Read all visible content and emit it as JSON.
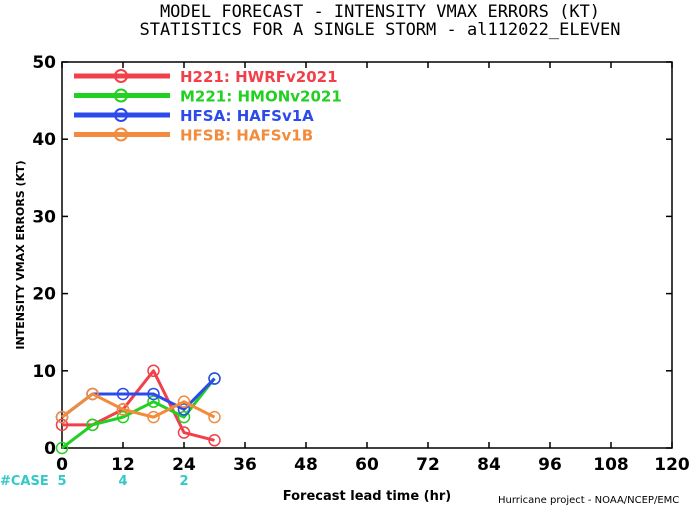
{
  "chart_data": {
    "type": "line",
    "title": "MODEL FORECAST - INTENSITY VMAX ERRORS (KT)",
    "subtitle": "STATISTICS FOR A SINGLE STORM - al112022_ELEVEN",
    "ylabel": "INTENSITY VMAX ERRORS (KT)",
    "xlabel": "Forecast lead time (hr)",
    "credit": "Hurricane project - NOAA/NCEP/EMC",
    "xlim": [
      0,
      120
    ],
    "ylim": [
      0,
      50
    ],
    "xticks": [
      0,
      12,
      24,
      36,
      48,
      60,
      72,
      84,
      96,
      108,
      120
    ],
    "yticks": [
      0,
      10,
      20,
      30,
      40,
      50
    ],
    "grid": false,
    "legend_position": "top-left",
    "series": [
      {
        "name": "H221",
        "label": "HWRFv2021",
        "color": "#f2404a",
        "x": [
          0,
          6,
          12,
          18,
          24,
          30
        ],
        "y": [
          3,
          3,
          5,
          10,
          2,
          1
        ]
      },
      {
        "name": "M221",
        "label": "HMONv2021",
        "color": "#22d022",
        "x": [
          0,
          6,
          12,
          18,
          24,
          30
        ],
        "y": [
          0,
          3,
          4,
          6,
          4,
          9
        ]
      },
      {
        "name": "HFSA",
        "label": "HAFSv1A",
        "color": "#2d4bea",
        "x": [
          0,
          6,
          12,
          18,
          24,
          30
        ],
        "y": [
          4,
          7,
          7,
          7,
          5,
          9
        ]
      },
      {
        "name": "HFSB",
        "label": "HAFSv1B",
        "color": "#f28c3c",
        "x": [
          0,
          6,
          12,
          18,
          24,
          30
        ],
        "y": [
          4,
          7,
          5,
          4,
          6,
          4
        ]
      }
    ],
    "cases": {
      "label": "#CASE",
      "x": [
        0,
        12,
        24
      ],
      "values": [
        "5",
        "4",
        "2"
      ]
    }
  }
}
